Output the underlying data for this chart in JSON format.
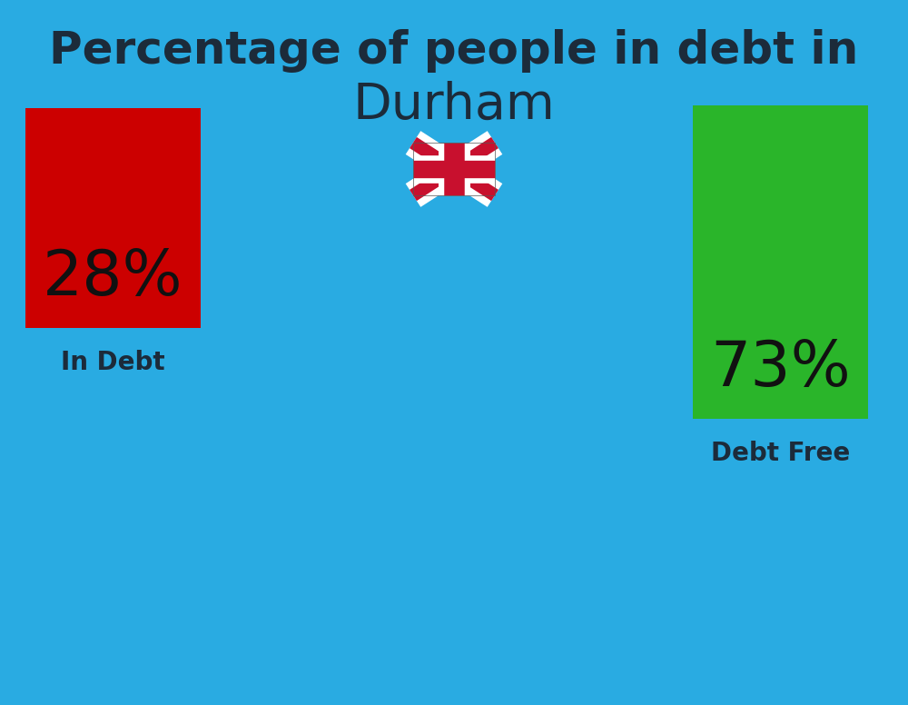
{
  "title_line1": "Percentage of people in debt in",
  "title_line2": "Durham",
  "background_color": "#29ABE2",
  "bar_left_value": "28%",
  "bar_left_label": "In Debt",
  "bar_left_color": "#CC0000",
  "bar_right_value": "73%",
  "bar_right_label": "Debt Free",
  "bar_right_color": "#2AB52A",
  "title_fontsize": 36,
  "subtitle_fontsize": 40,
  "bar_value_fontsize": 50,
  "bar_label_fontsize": 20,
  "title_color": "#1C2B3A",
  "label_color": "#1C2B3A",
  "value_color": "#111111",
  "flag_fontsize": 44
}
